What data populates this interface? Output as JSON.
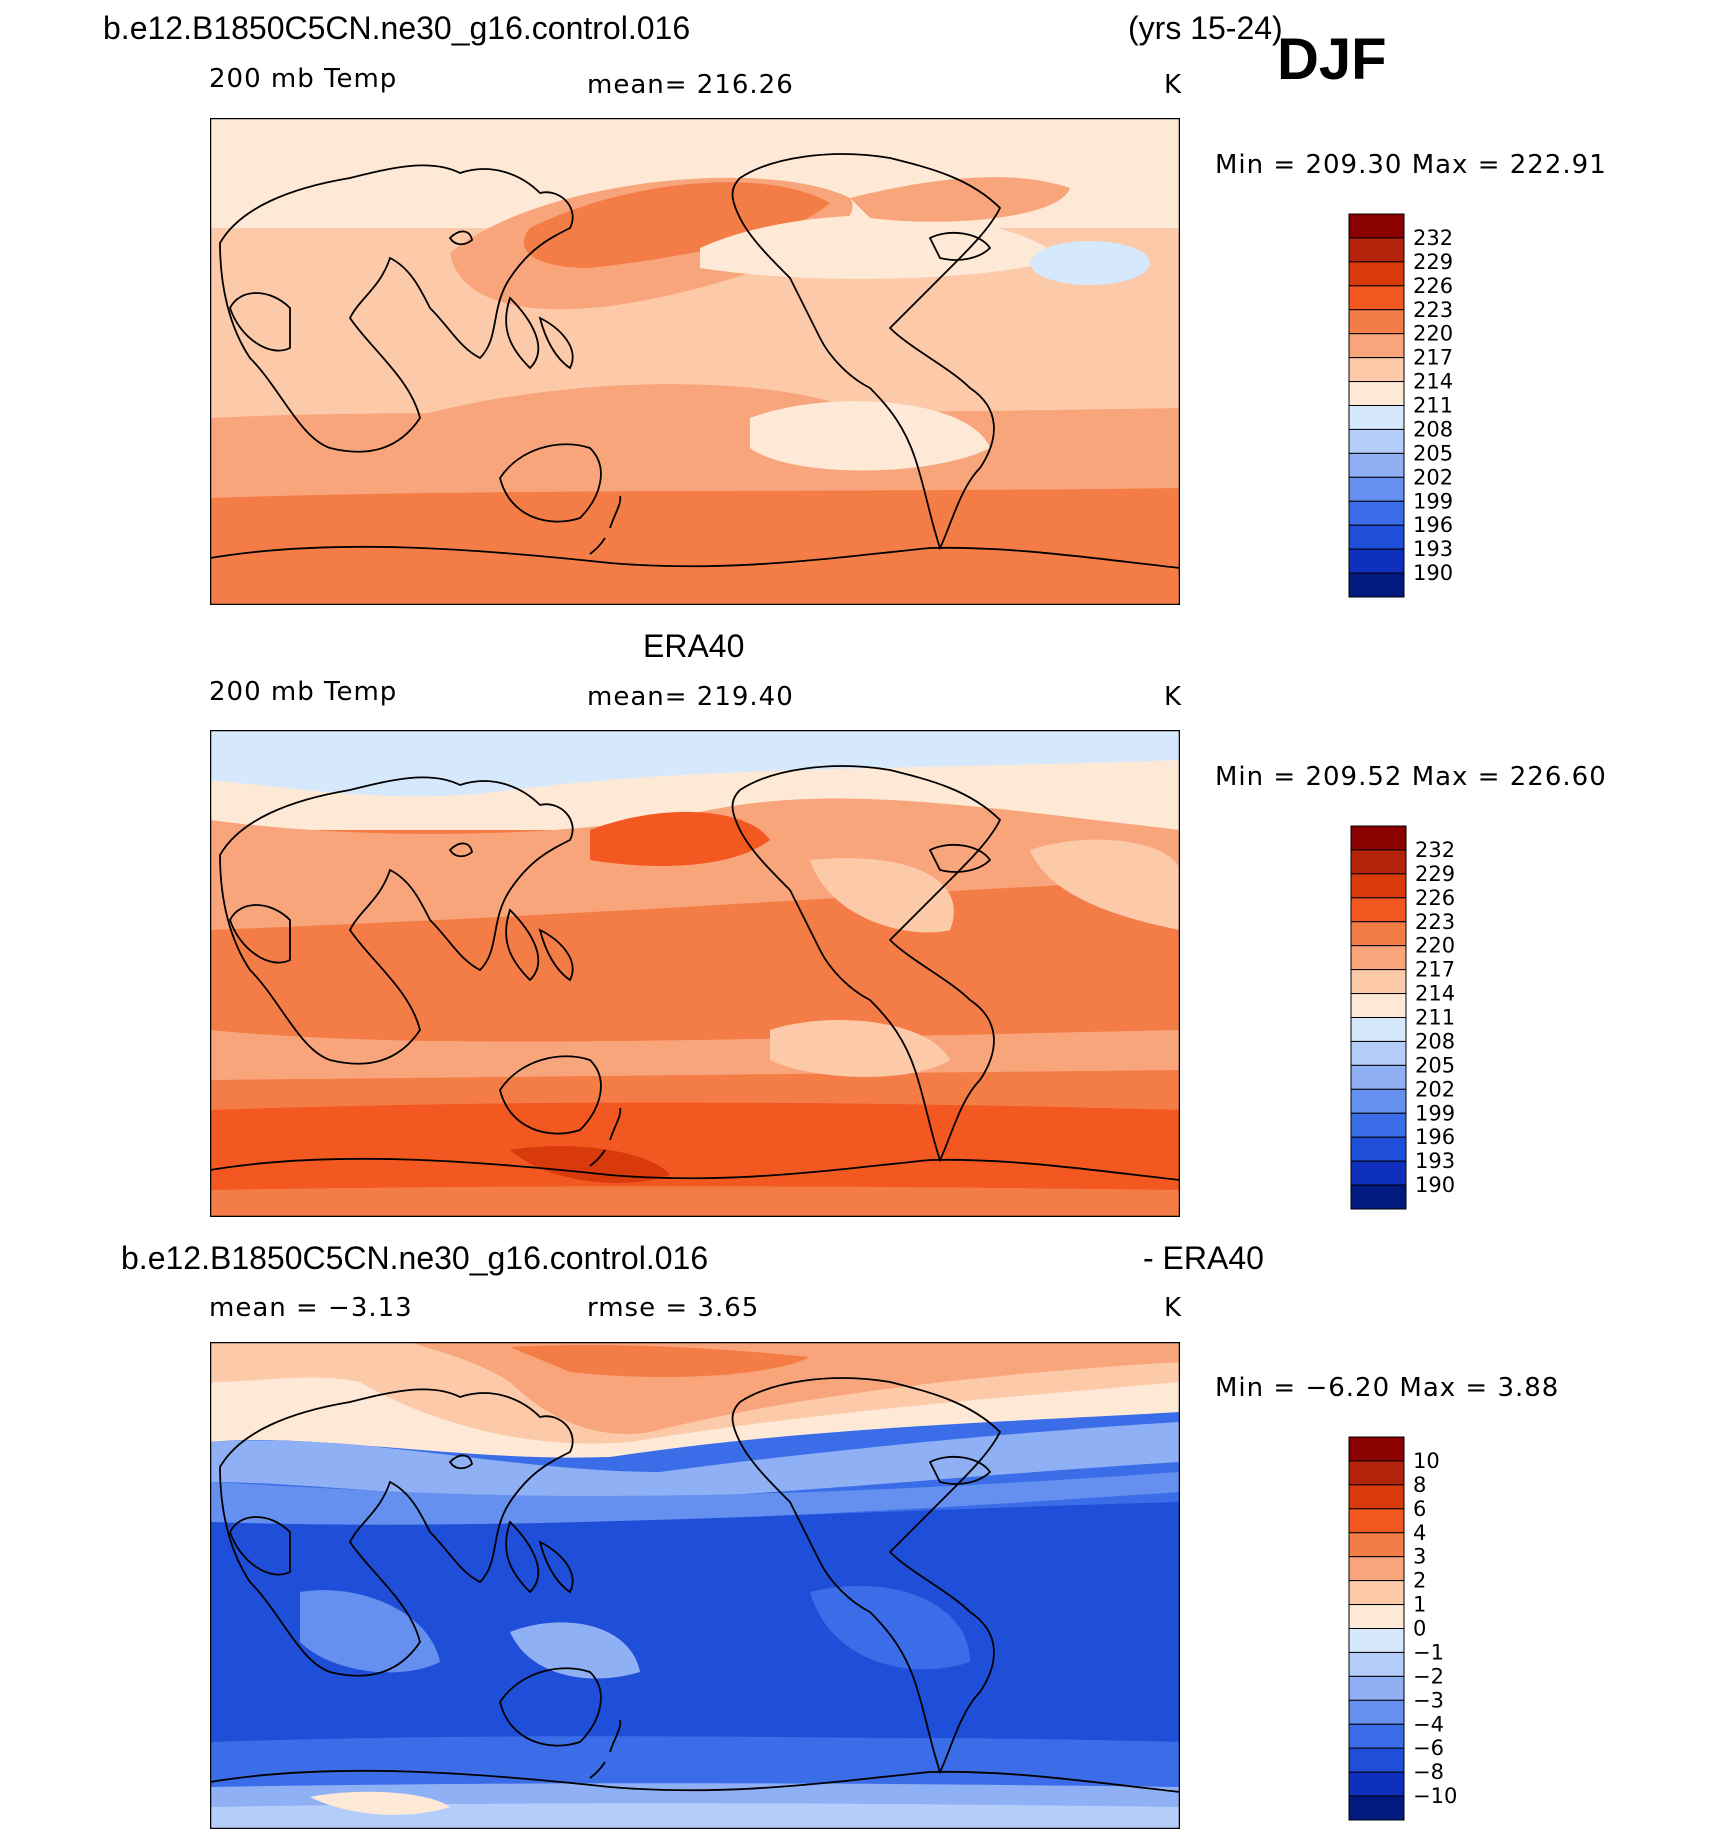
{
  "header": {
    "case_name": "b.e12.B1850C5CN.ne30_g16.control.016",
    "years": "(yrs 15-24)",
    "season": "DJF"
  },
  "panels": [
    {
      "title": "",
      "variable": "200 mb Temp",
      "mean": "mean= 216.26",
      "units": "K",
      "minmax": "Min = 209.30 Max = 222.91",
      "colorbar_labels": [
        "232",
        "229",
        "226",
        "223",
        "220",
        "217",
        "214",
        "211",
        "208",
        "205",
        "202",
        "199",
        "196",
        "193",
        "190"
      ]
    },
    {
      "title": "ERA40",
      "variable": "200 mb Temp",
      "mean": "mean= 219.40",
      "units": "K",
      "minmax": "Min = 209.52 Max = 226.60",
      "colorbar_labels": [
        "232",
        "229",
        "226",
        "223",
        "220",
        "217",
        "214",
        "211",
        "208",
        "205",
        "202",
        "199",
        "196",
        "193",
        "190"
      ]
    },
    {
      "title_left": "b.e12.B1850C5CN.ne30_g16.control.016",
      "title_right": "- ERA40",
      "mean": "mean =   −3.13",
      "rmse": "rmse =    3.65",
      "units": "K",
      "minmax": "Min =  −6.20 Max =     3.88",
      "colorbar_labels": [
        "10",
        "8",
        "6",
        "4",
        "3",
        "2",
        "1",
        "0",
        "−1",
        "−2",
        "−3",
        "−4",
        "−6",
        "−8",
        "−10"
      ]
    }
  ],
  "colors": {
    "temp_scale": [
      "#8b0000",
      "#b3220a",
      "#d93a0c",
      "#f25820",
      "#f47c46",
      "#f9a57b",
      "#fcc9a9",
      "#fde9d6",
      "#d6e8fb",
      "#b5cdfa",
      "#8fb0f5",
      "#6690f0",
      "#3b6de8",
      "#1f4fd9",
      "#0f30bd",
      "#001a80"
    ],
    "diff_scale": [
      "#8b0000",
      "#b3220a",
      "#d93a0c",
      "#f25820",
      "#f47c46",
      "#f9a57b",
      "#fcc9a9",
      "#fde9d6",
      "#d6e8fb",
      "#b5cdfa",
      "#8fb0f5",
      "#6690f0",
      "#3b6de8",
      "#1f4fd9",
      "#0f30bd",
      "#001a80"
    ]
  }
}
